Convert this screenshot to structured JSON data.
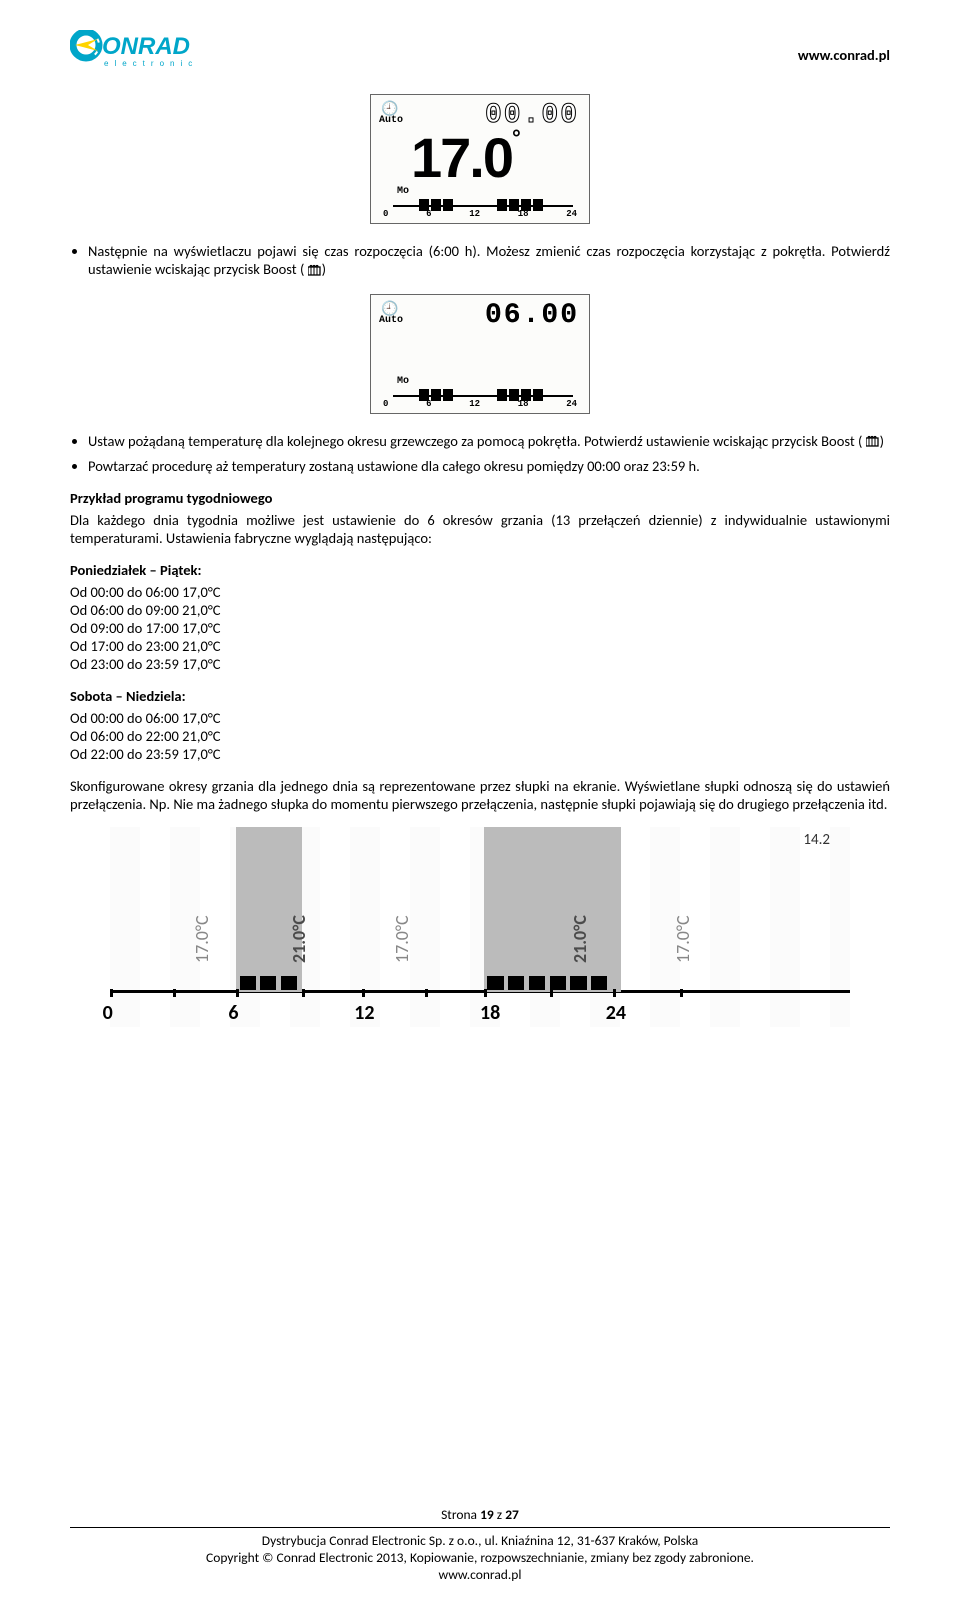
{
  "header": {
    "url": "www.conrad.pl",
    "logo": {
      "text_main": "ONRAD",
      "color_primary": "#00a6c9",
      "color_accent": "#ffd400",
      "subtitle": "e l e c t r o n i c"
    }
  },
  "lcd1": {
    "clock_glyph": "🕘",
    "auto": "Auto",
    "time": "00.00",
    "temp_main": "17.0",
    "degree": "°",
    "mo": "Mo",
    "scale": [
      "0",
      "6",
      "12",
      "18",
      "24"
    ]
  },
  "lcd2": {
    "clock_glyph": "🕘",
    "auto": "Auto",
    "time": "06.00",
    "mo": "Mo",
    "scale": [
      "0",
      "6",
      "12",
      "18",
      "24"
    ]
  },
  "bullets_top": [
    "Następnie na wyświetlaczu pojawi się czas rozpoczęcia (6:00 h). Możesz zmienić czas rozpoczęcia korzystając z pokrętła. Potwierdź ustawienie wciskając przycisk Boost ("
  ],
  "bullets_mid": [
    "Ustaw pożądaną temperaturę dla kolejnego okresu grzewczego za pomocą pokrętła. Potwierdź ustawienie wciskając przycisk Boost (",
    "Powtarzać procedurę aż temperatury zostaną ustawione dla całego okresu pomiędzy 00:00 oraz 23:59 h."
  ],
  "example_title": "Przykład programu tygodniowego",
  "example_para": "Dla każdego dnia tygodnia możliwe jest ustawienie do 6 okresów grzania (13 przełączeń dziennie) z indywidualnie ustawionymi temperaturami. Ustawienia fabryczne wyglądają następująco:",
  "weekday_title": "Poniedziałek – Piątek:",
  "weekday_sched": [
    "Od 00:00 do 06:00 17,0°C",
    "Od 06:00 do 09:00 21,0°C",
    "Od 09:00 do 17:00 17,0°C",
    "Od 17:00 do 23:00 21,0°C",
    "Od 23:00 do 23:59 17,0°C"
  ],
  "weekend_title": "Sobota – Niedziela:",
  "weekend_sched": [
    "Od 00:00 do 06:00 17,0°C",
    "Od 06:00 do 22:00 21,0°C",
    "Od 22:00 do 23:59 17,0°C"
  ],
  "closing_para": "Skonfigurowane okresy grzania dla jednego dnia są reprezentowane przez słupki na ekranie. Wyświetlane słupki odnoszą się do ustawień przełączenia. Np. Nie ma żadnego słupka do momentu pierwszego przełączenia, następnie słupki pojawiają się do drugiego przełączenia itd.",
  "timeline": {
    "annot": "14.2",
    "labels": [
      "17.0°C",
      "21.0°C",
      "17.0°C",
      "21.0°C",
      "17.0°C"
    ],
    "numbers": [
      "0",
      "6",
      "12",
      "18",
      "24"
    ],
    "bands": [
      {
        "left_pct": 17,
        "width_pct": 9
      },
      {
        "left_pct": 50.5,
        "width_pct": 18.5
      }
    ],
    "label_positions_pct": [
      11,
      24,
      38,
      62,
      76
    ],
    "label_styles": [
      "light",
      "bold",
      "light",
      "bold",
      "light"
    ],
    "blocks": [
      {
        "left_pct": 17.5,
        "width_pct": 2.2
      },
      {
        "left_pct": 20.3,
        "width_pct": 2.2
      },
      {
        "left_pct": 23.1,
        "width_pct": 2.2
      },
      {
        "left_pct": 51.0,
        "width_pct": 2.2
      },
      {
        "left_pct": 53.8,
        "width_pct": 2.2
      },
      {
        "left_pct": 56.6,
        "width_pct": 2.2
      },
      {
        "left_pct": 59.4,
        "width_pct": 2.2
      },
      {
        "left_pct": 62.2,
        "width_pct": 2.2
      },
      {
        "left_pct": 65.0,
        "width_pct": 2.2
      }
    ],
    "ticks_pct": [
      0,
      8.5,
      17,
      26,
      34,
      42.5,
      50.5,
      59.5,
      68,
      77
    ],
    "num_positions_pct": [
      -1,
      16,
      33,
      50,
      67
    ]
  },
  "footer": {
    "page": "Strona 19 z 27",
    "addr": "Dystrybucja Conrad Electronic Sp. z o.o., ul. Kniaźnina 12, 31-637 Kraków, Polska",
    "copy": "Copyright © Conrad Electronic 2013, Kopiowanie, rozpowszechnianie, zmiany bez zgody zabronione.",
    "url": "www.conrad.pl"
  },
  "colors": {
    "lcd_bg": "#fcfcfa",
    "band_gray": "#bbbbbb",
    "label_dark": "#4b4b4b",
    "label_light": "#888888"
  }
}
